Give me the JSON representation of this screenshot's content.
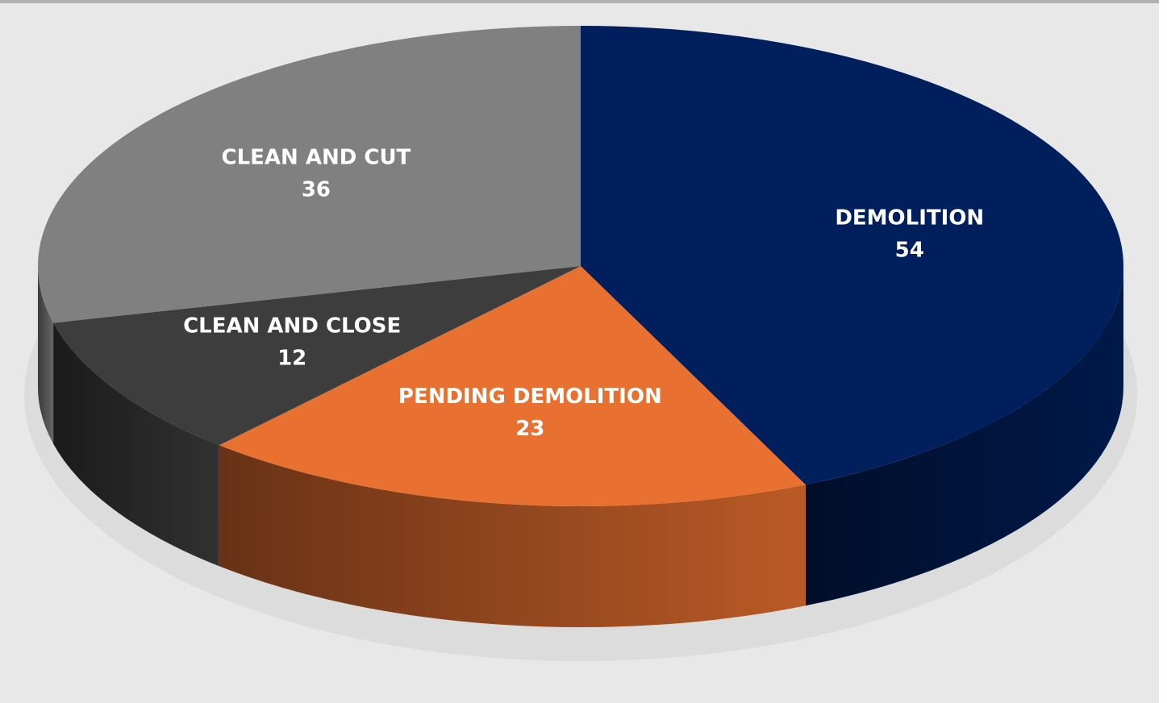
{
  "chart_data": {
    "type": "pie3d",
    "categories": [
      "DEMOLITION",
      "PENDING DEMOLITION",
      "CLEAN AND CLOSE",
      "CLEAN AND CUT"
    ],
    "values": [
      54,
      23,
      12,
      36
    ],
    "colors": [
      "#001f5c",
      "#e87030",
      "#3d3d3d",
      "#808080"
    ]
  }
}
